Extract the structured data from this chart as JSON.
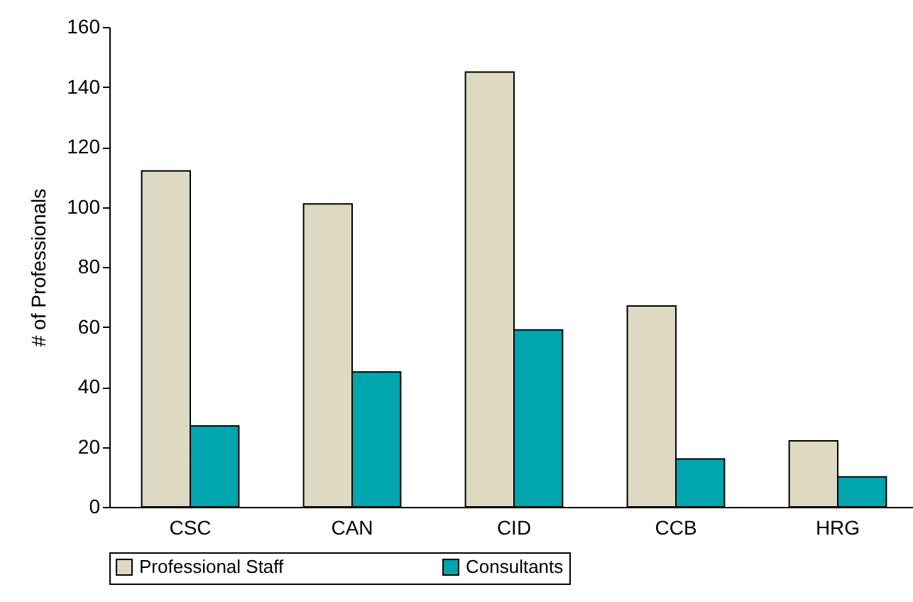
{
  "chart_data": {
    "type": "bar",
    "ylabel": "# of Professionals",
    "categories": [
      "CSC",
      "CAN",
      "CID",
      "CCB",
      "HRG"
    ],
    "series": [
      {
        "name": "Professional Staff",
        "color": "#ddd9c3",
        "values": [
          112,
          101,
          145,
          67,
          22
        ]
      },
      {
        "name": "Consultants",
        "color": "#00a5ad",
        "values": [
          27,
          45,
          59,
          16,
          10
        ]
      }
    ],
    "ylim": [
      0,
      160
    ],
    "yticks": [
      0,
      20,
      40,
      60,
      80,
      100,
      120,
      140,
      160
    ],
    "grid": false,
    "legend": "bottom"
  }
}
